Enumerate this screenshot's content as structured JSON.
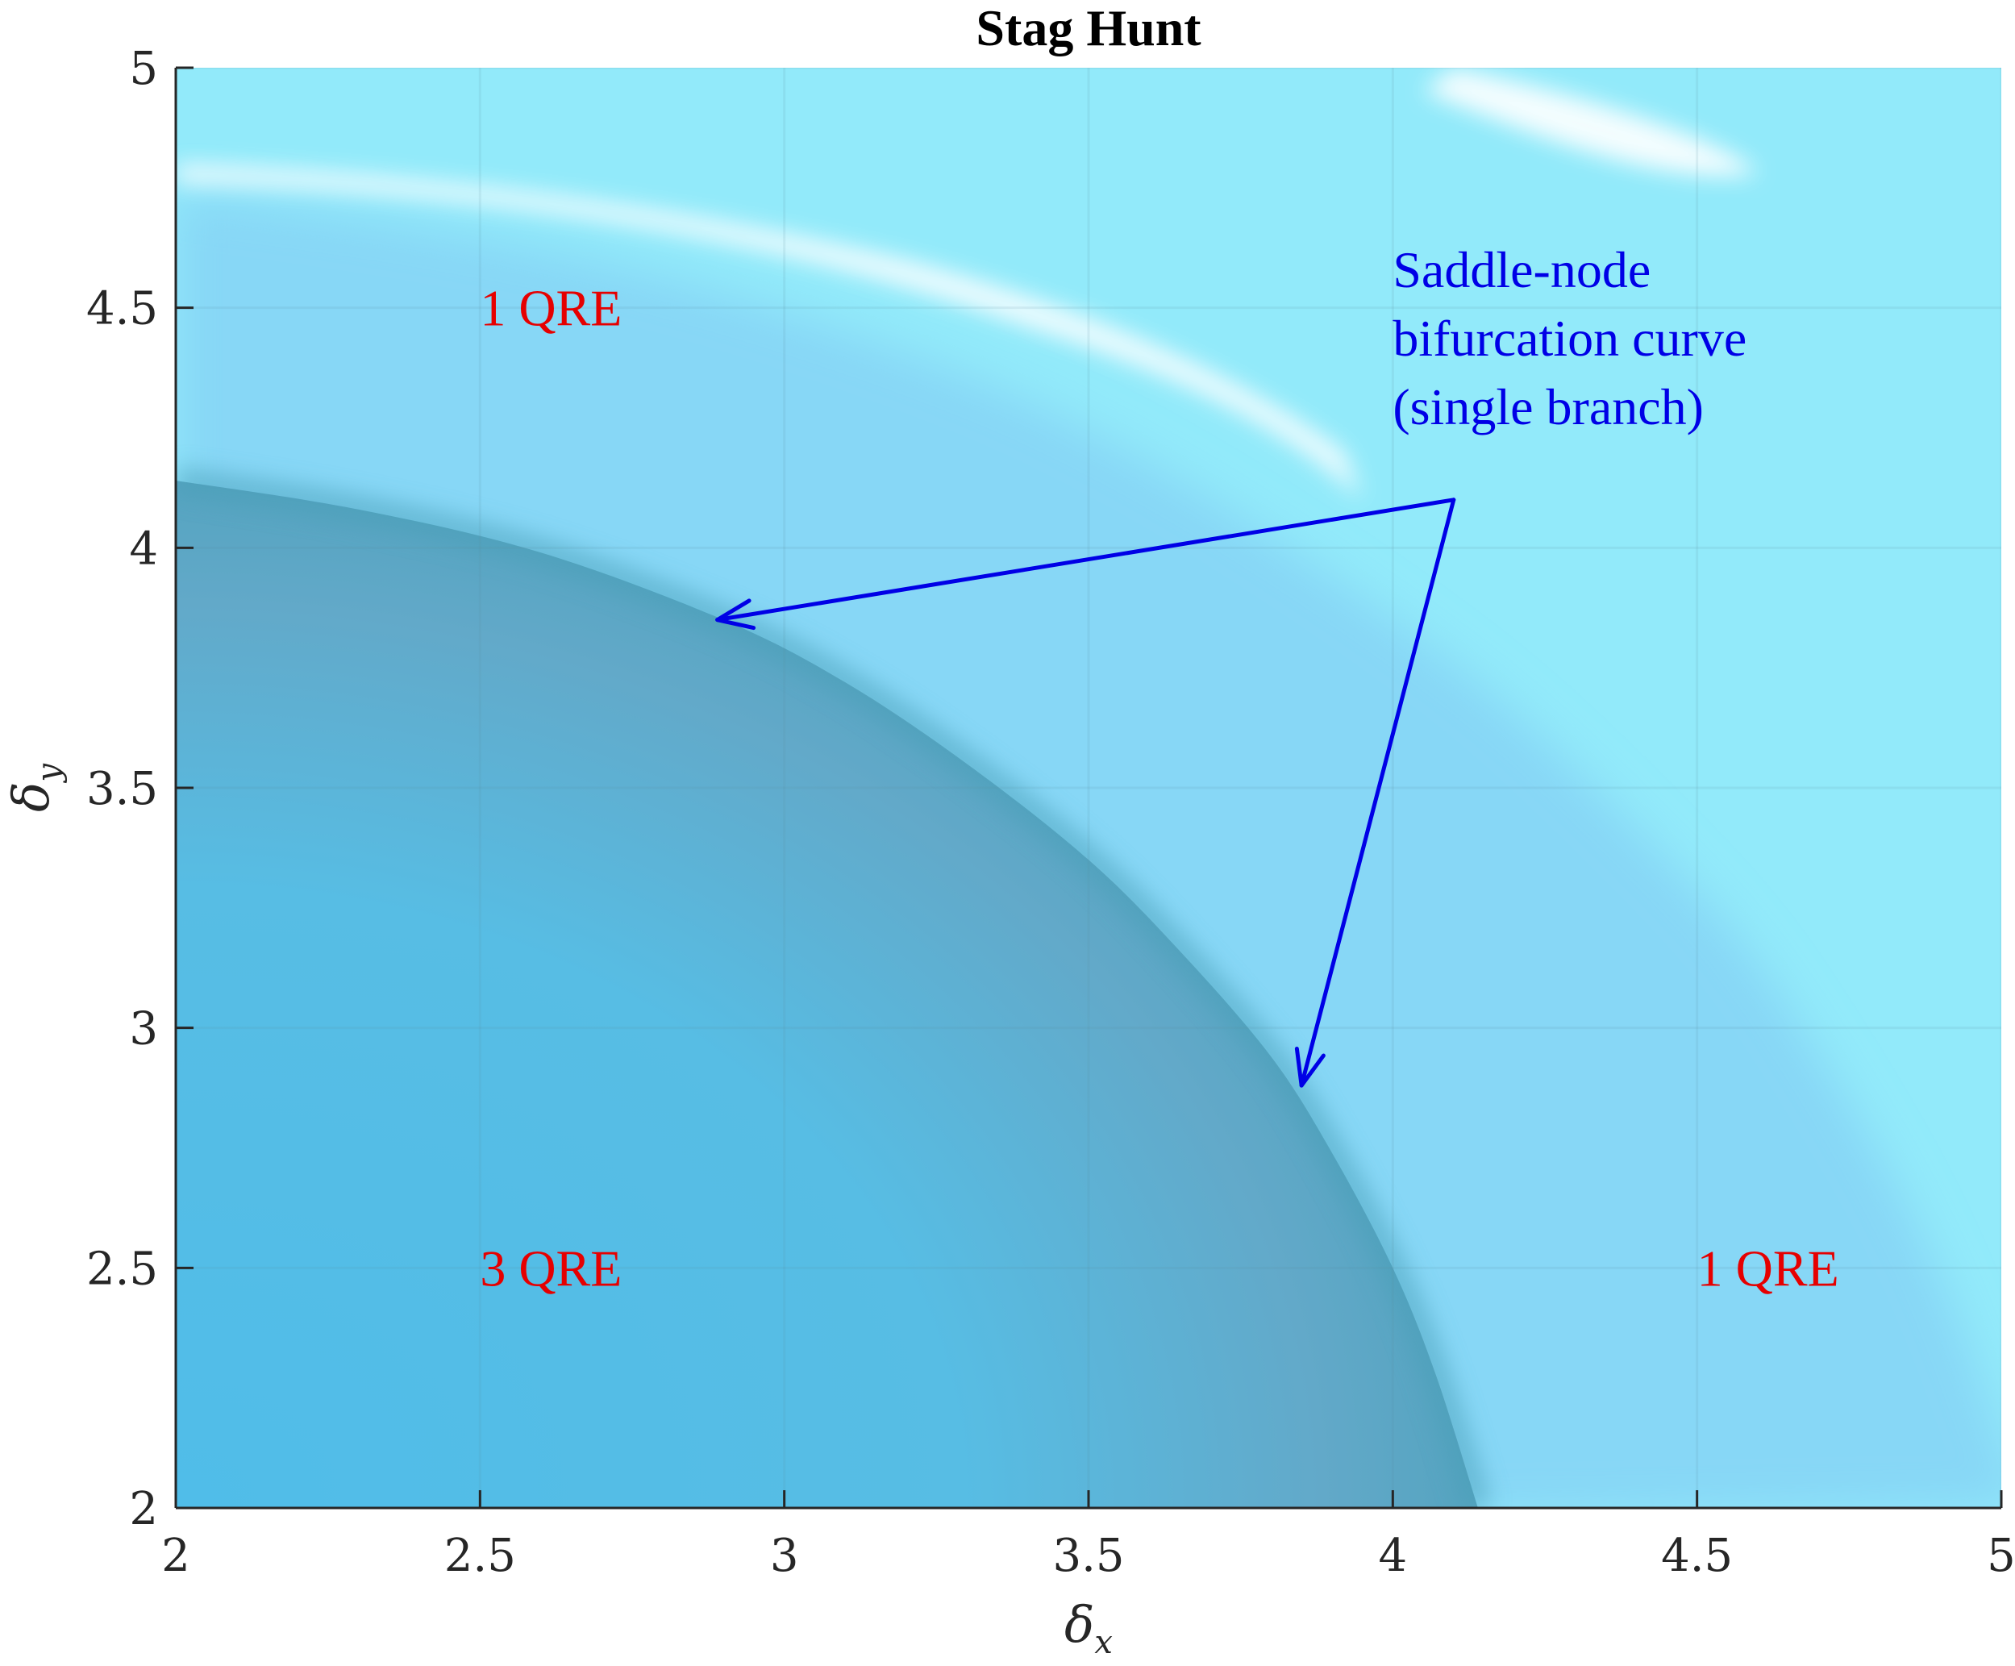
{
  "chart_data": {
    "type": "heatmap",
    "title": "Stag Hunt",
    "xlabel": "δx",
    "ylabel": "δy",
    "xlabel_base": "δ",
    "xlabel_sub": "x",
    "ylabel_base": "δ",
    "ylabel_sub": "y",
    "xlim": [
      2,
      5
    ],
    "ylim": [
      2,
      5
    ],
    "xticks": [
      2,
      2.5,
      3,
      3.5,
      4,
      4.5,
      5
    ],
    "yticks": [
      2,
      2.5,
      3,
      3.5,
      4,
      4.5,
      5
    ],
    "grid": true,
    "bifurcation_curve": {
      "description_label": "Saddle-node bifurcation curve",
      "points": [
        [
          2.0,
          4.14
        ],
        [
          2.3,
          4.08
        ],
        [
          2.6,
          3.99
        ],
        [
          2.9,
          3.85
        ],
        [
          3.1,
          3.72
        ],
        [
          3.3,
          3.55
        ],
        [
          3.5,
          3.35
        ],
        [
          3.65,
          3.16
        ],
        [
          3.8,
          2.94
        ],
        [
          3.9,
          2.74
        ],
        [
          4.0,
          2.5
        ],
        [
          4.07,
          2.28
        ],
        [
          4.14,
          2.0
        ]
      ]
    },
    "region_labels": [
      {
        "text": "1 QRE",
        "x": 2.5,
        "y": 4.5
      },
      {
        "text": "3 QRE",
        "x": 2.5,
        "y": 2.5
      },
      {
        "text": "1 QRE",
        "x": 4.5,
        "y": 2.5
      }
    ],
    "annotation": {
      "lines": [
        "Saddle-node",
        "bifurcation curve",
        "(single branch)"
      ],
      "text_x": 4.0,
      "text_y": 4.58,
      "arrow_origin": [
        4.1,
        4.1
      ],
      "arrow_targets": [
        [
          2.89,
          3.85
        ],
        [
          3.85,
          2.88
        ]
      ]
    },
    "colors": {
      "three_qre": "#55bfea",
      "one_qre_inner": "#87d7f6",
      "one_qre_outer": "#92eafa",
      "curve_band": "#4a9fb8",
      "highlight": "#ffffff",
      "region_label": "#e60000",
      "annotation": "#0000e6"
    }
  }
}
